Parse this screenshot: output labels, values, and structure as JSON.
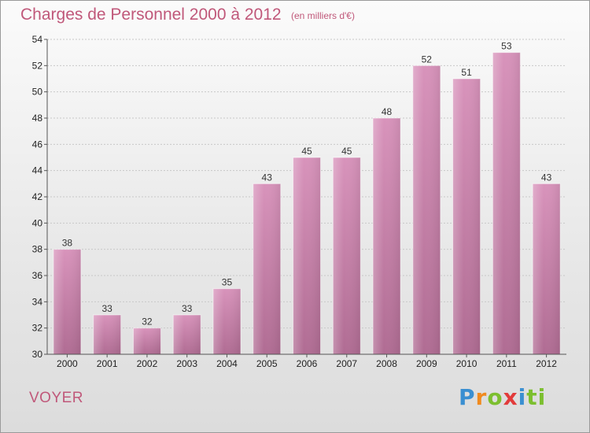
{
  "title": "Charges de Personnel 2000 à 2012",
  "subtitle": "(en milliers d'€)",
  "commune": "VOYER",
  "brand": {
    "letters": [
      "P",
      "r",
      "o",
      "x",
      "i",
      "t",
      "i"
    ]
  },
  "colors": {
    "bar": "#d893bb",
    "bar_dark": "#b06c93",
    "text_accent": "#c0587a",
    "axis": "#555555"
  },
  "chart_data": {
    "type": "bar",
    "title": "Charges de Personnel 2000 à 2012",
    "subtitle": "(en milliers d'€)",
    "categories": [
      "2000",
      "2001",
      "2002",
      "2003",
      "2004",
      "2005",
      "2006",
      "2007",
      "2008",
      "2009",
      "2010",
      "2011",
      "2012"
    ],
    "values": [
      38,
      33,
      32,
      33,
      35,
      43,
      45,
      45,
      48,
      52,
      51,
      53,
      43
    ],
    "ylim": [
      30,
      54
    ],
    "yticks": [
      30,
      32,
      34,
      36,
      38,
      40,
      42,
      44,
      46,
      48,
      50,
      52,
      54
    ],
    "grid": true,
    "xlabel": "",
    "ylabel": ""
  }
}
